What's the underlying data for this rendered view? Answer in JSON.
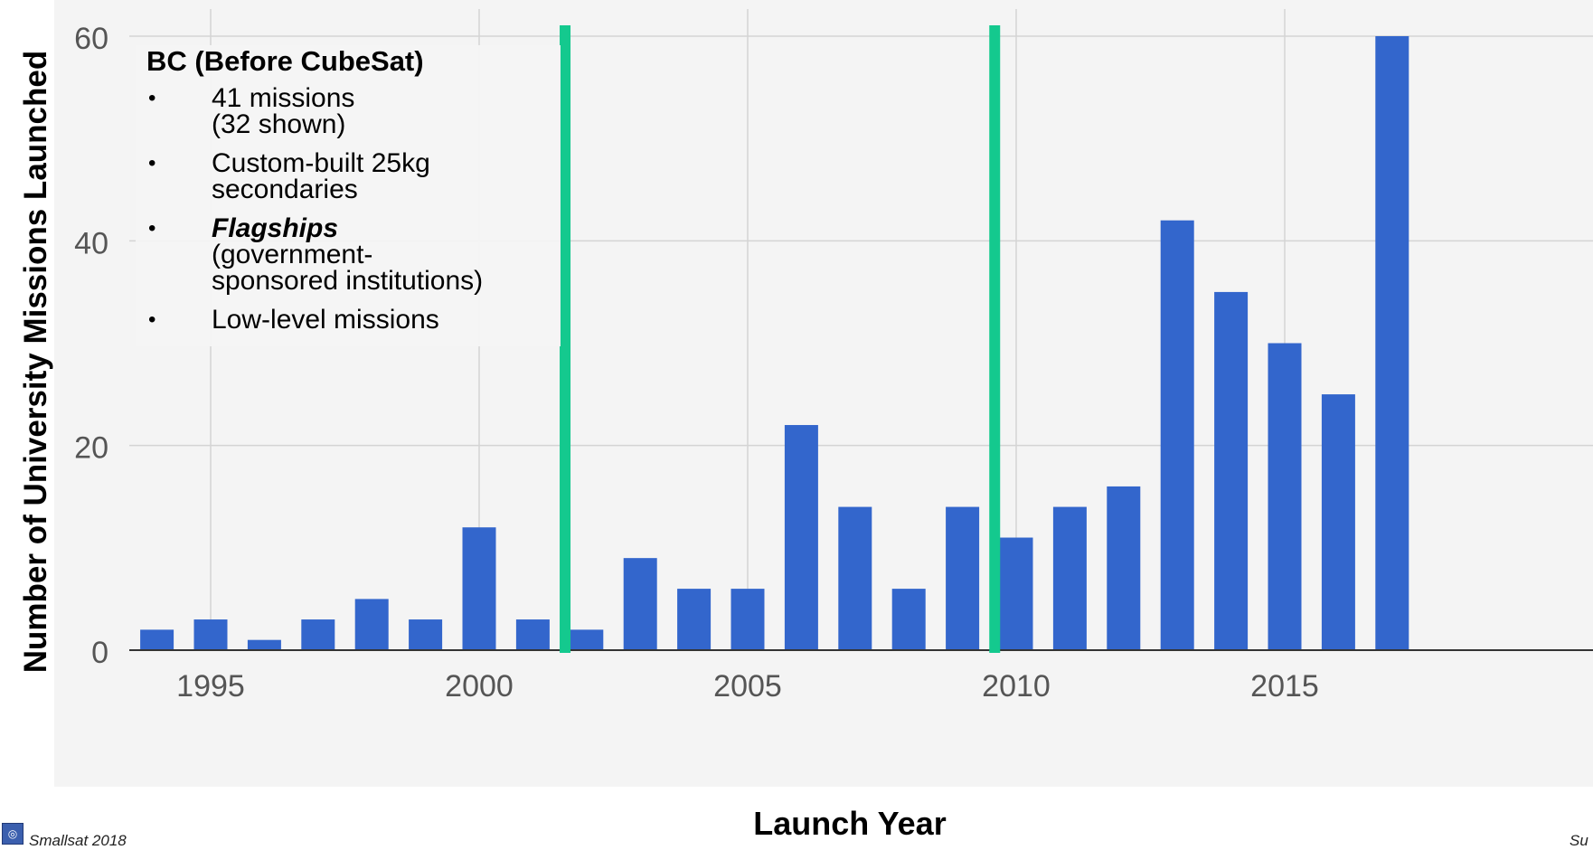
{
  "chart_data": {
    "type": "bar",
    "title": "",
    "xlabel": "Launch Year",
    "ylabel": "Number of University Missions Launched",
    "x": [
      1994,
      1995,
      1996,
      1997,
      1998,
      1999,
      2000,
      2001,
      2002,
      2003,
      2004,
      2005,
      2006,
      2007,
      2008,
      2009,
      2010,
      2011,
      2012,
      2013,
      2014,
      2015,
      2016,
      2017
    ],
    "values": [
      2,
      3,
      1,
      3,
      5,
      3,
      12,
      3,
      2,
      9,
      6,
      6,
      22,
      14,
      6,
      14,
      11,
      14,
      16,
      42,
      35,
      30,
      25,
      60
    ],
    "x_ticks": [
      "1995",
      "2000",
      "2005",
      "2010",
      "2015"
    ],
    "y_ticks": [
      "0",
      "20",
      "40",
      "60"
    ],
    "ylim": [
      0,
      60
    ],
    "grid": true,
    "bar_color": "#3366cc",
    "vertical_markers": [
      {
        "x": 2001.6,
        "color": "#14c98e"
      },
      {
        "x": 2009.6,
        "color": "#14c98e"
      }
    ]
  },
  "annotation": {
    "title": "BC (Before CubeSat)",
    "bullets": [
      {
        "text": "41 missions\n(32 shown)"
      },
      {
        "text": "Custom-built 25kg\nsecondaries"
      },
      {
        "emphasis": "Flagships",
        "text": "(government-\nsponsored institutions)"
      },
      {
        "text": "Low-level missions"
      }
    ],
    "bullet_symbol": "•"
  },
  "footer": {
    "left": "Smallsat 2018",
    "right": "Su"
  }
}
